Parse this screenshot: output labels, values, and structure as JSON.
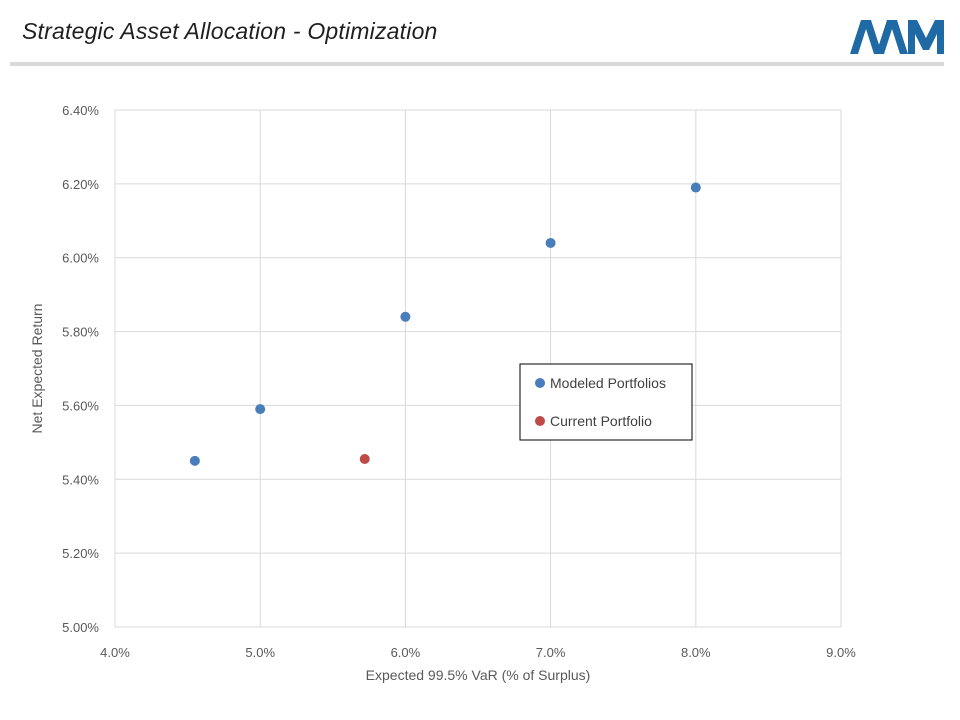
{
  "header": {
    "title": "Strategic Asset Allocation - Optimization",
    "logo_text": "AAM",
    "logo_color": "#1f6aa5"
  },
  "chart_data": {
    "type": "scatter",
    "xlabel": "Expected 99.5% VaR (% of Surplus)",
    "ylabel": "Net Expected Return",
    "xlim": [
      4.0,
      9.0
    ],
    "ylim": [
      5.0,
      6.4
    ],
    "x_ticks": [
      "4.0%",
      "5.0%",
      "6.0%",
      "7.0%",
      "8.0%",
      "9.0%"
    ],
    "y_ticks": [
      "5.00%",
      "5.20%",
      "5.40%",
      "5.60%",
      "5.80%",
      "6.00%",
      "6.20%",
      "6.40%"
    ],
    "grid": true,
    "legend_position": "center-right",
    "series": [
      {
        "name": "Modeled Portfolios",
        "color": "#4a7ebb",
        "points": [
          {
            "x": 4.55,
            "y": 5.45
          },
          {
            "x": 5.0,
            "y": 5.59
          },
          {
            "x": 6.0,
            "y": 5.84
          },
          {
            "x": 7.0,
            "y": 6.04
          },
          {
            "x": 8.0,
            "y": 6.19
          }
        ]
      },
      {
        "name": "Current Portfolio",
        "color": "#be4b48",
        "points": [
          {
            "x": 5.72,
            "y": 5.455
          }
        ]
      }
    ]
  }
}
